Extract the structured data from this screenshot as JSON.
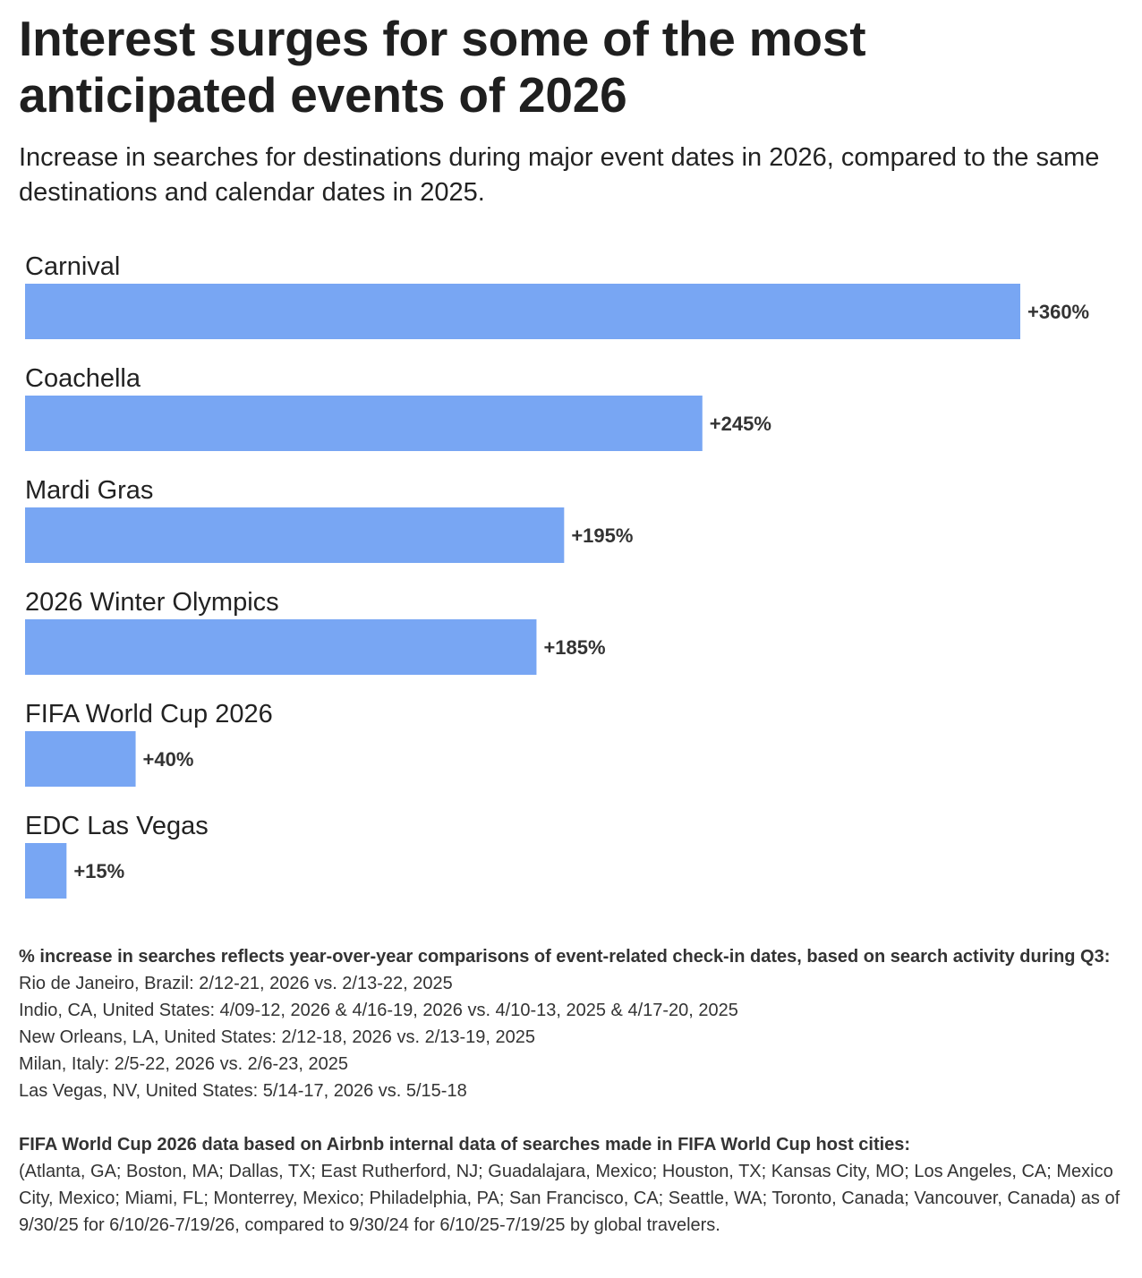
{
  "title": "Interest surges for some of the most anticipated events of 2026",
  "subtitle": "Increase in searches for destinations during major event dates in 2026, compared to the same destinations and calendar dates in 2025.",
  "colors": {
    "bar": "#78a6f3",
    "text": "#222222"
  },
  "chart_data": {
    "type": "bar",
    "orientation": "horizontal",
    "title": "Interest surges for some of the most anticipated events of 2026",
    "xlabel": "",
    "ylabel": "",
    "unit": "% increase in searches",
    "xlim": [
      0,
      360
    ],
    "grid": false,
    "categories": [
      "Carnival",
      "Coachella",
      "Mardi Gras",
      "2026 Winter Olympics",
      "FIFA World Cup 2026",
      "EDC Las Vegas"
    ],
    "values": [
      360,
      245,
      195,
      185,
      40,
      15
    ],
    "value_labels": [
      "+360%",
      "+245%",
      "+195%",
      "+185%",
      "+40%",
      "+15%"
    ]
  },
  "notes": {
    "methodology_heading": "% increase in searches reflects year-over-year comparisons of event-related check-in dates, based on search activity during Q3:",
    "date_ranges": [
      "Rio de Janeiro, Brazil: 2/12-21, 2026 vs. 2/13-22, 2025",
      "Indio, CA, United States: 4/09-12, 2026 & 4/16-19, 2026 vs. 4/10-13, 2025 & 4/17-20, 2025",
      "New Orleans, LA, United States: 2/12-18, 2026 vs. 2/13-19, 2025",
      "Milan, Italy: 2/5-22, 2026 vs. 2/6-23, 2025",
      "Las Vegas, NV, United States: 5/14-17, 2026 vs. 5/15-18"
    ],
    "fifa_heading": "FIFA World Cup 2026 data based on Airbnb internal data of searches made in FIFA World Cup host cities:",
    "fifa_detail": "(Atlanta, GA; Boston, MA; Dallas, TX; East Rutherford, NJ; Guadalajara, Mexico; Houston, TX; Kansas City, MO; Los Angeles, CA; Mexico City, Mexico; Miami, FL; Monterrey, Mexico; Philadelphia, PA; San Francisco, CA; Seattle, WA; Toronto, Canada; Vancouver, Canada) as of 9/30/25 for 6/10/26-7/19/26, compared to 9/30/24 for 6/10/25-7/19/25 by global travelers."
  }
}
